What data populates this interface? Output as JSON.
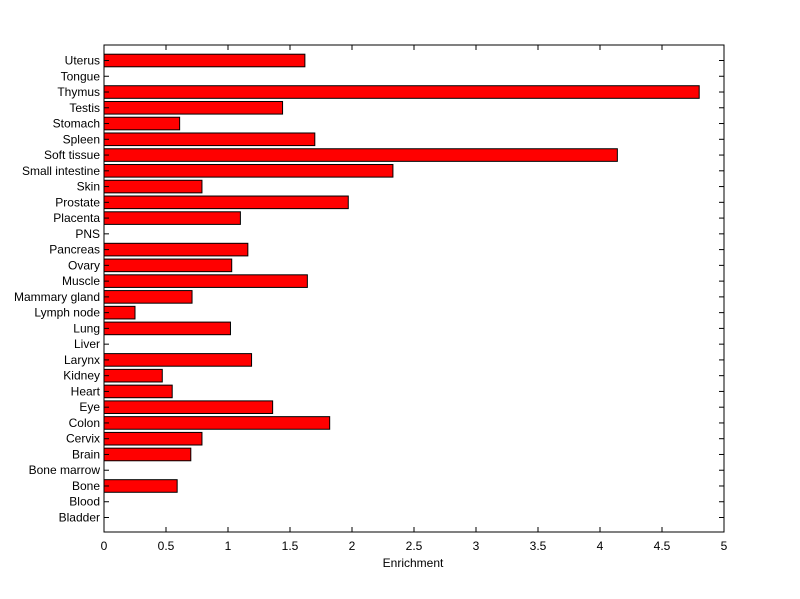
{
  "chart_data": {
    "type": "bar",
    "orientation": "horizontal",
    "title": "",
    "xlabel": "Enrichment",
    "ylabel": "",
    "xlim": [
      0,
      5
    ],
    "xticks": [
      0,
      0.5,
      1,
      1.5,
      2,
      2.5,
      3,
      3.5,
      4,
      4.5,
      5
    ],
    "xtick_labels": [
      "0",
      "0.5",
      "1",
      "1.5",
      "2",
      "2.5",
      "3",
      "3.5",
      "4",
      "4.5",
      "5"
    ],
    "grid": false,
    "bar_color": "#ff0000",
    "edge_color": "#000000",
    "categories": [
      "Bladder",
      "Blood",
      "Bone",
      "Bone marrow",
      "Brain",
      "Cervix",
      "Colon",
      "Eye",
      "Heart",
      "Kidney",
      "Larynx",
      "Liver",
      "Lung",
      "Lymph node",
      "Mammary gland",
      "Muscle",
      "Ovary",
      "Pancreas",
      "PNS",
      "Placenta",
      "Prostate",
      "Skin",
      "Small intestine",
      "Soft tissue",
      "Spleen",
      "Stomach",
      "Testis",
      "Thymus",
      "Tongue",
      "Uterus"
    ],
    "values": [
      0,
      0,
      0.59,
      0,
      0.7,
      0.79,
      1.82,
      1.36,
      0.55,
      0.47,
      1.19,
      0,
      1.02,
      0.25,
      0.71,
      1.64,
      1.03,
      1.16,
      0,
      1.1,
      1.97,
      0.79,
      2.33,
      4.14,
      1.7,
      0.61,
      1.44,
      4.8,
      0,
      1.62
    ]
  }
}
